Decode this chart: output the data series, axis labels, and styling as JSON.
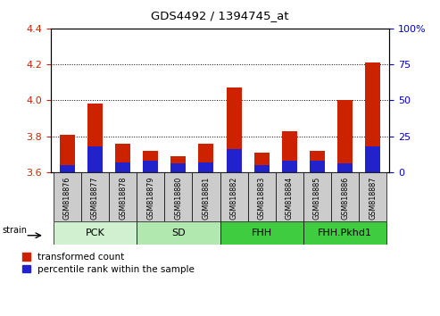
{
  "title": "GDS4492 / 1394745_at",
  "samples": [
    "GSM818876",
    "GSM818877",
    "GSM818878",
    "GSM818879",
    "GSM818880",
    "GSM818881",
    "GSM818882",
    "GSM818883",
    "GSM818884",
    "GSM818885",
    "GSM818886",
    "GSM818887"
  ],
  "transformed_count": [
    3.81,
    3.98,
    3.76,
    3.72,
    3.69,
    3.76,
    4.07,
    3.71,
    3.83,
    3.72,
    4.0,
    4.21
  ],
  "percentile_rank": [
    5.0,
    18.0,
    7.0,
    8.0,
    6.0,
    7.0,
    16.0,
    5.0,
    8.0,
    8.0,
    6.0,
    18.0
  ],
  "y_min": 3.6,
  "y_max": 4.4,
  "y_ticks_left": [
    3.6,
    3.8,
    4.0,
    4.2,
    4.4
  ],
  "y_ticks_right": [
    0,
    25,
    50,
    75,
    100
  ],
  "group_configs": [
    {
      "label": "PCK",
      "indices": [
        0,
        1,
        2
      ],
      "color": "#d0f0d0"
    },
    {
      "label": "SD",
      "indices": [
        3,
        4,
        5
      ],
      "color": "#b0e8b0"
    },
    {
      "label": "FHH",
      "indices": [
        6,
        7,
        8
      ],
      "color": "#40cc40"
    },
    {
      "label": "FHH.Pkhd1",
      "indices": [
        9,
        10,
        11
      ],
      "color": "#40cc40"
    }
  ],
  "bar_color_red": "#cc2200",
  "bar_color_blue": "#2222cc",
  "bar_width": 0.55,
  "bg_color_plot": "#ffffff",
  "bg_color_xtick": "#cccccc",
  "left_tick_color": "#cc2200",
  "right_tick_color": "#0000cc",
  "legend_red_label": "transformed count",
  "legend_blue_label": "percentile rank within the sample",
  "fig_width": 4.93,
  "fig_height": 3.54,
  "dpi": 100
}
